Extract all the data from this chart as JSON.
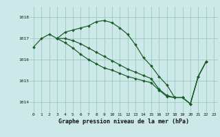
{
  "background_color": "#cce8e8",
  "grid_color": "#99ccbb",
  "line_color": "#1a5e2a",
  "xlabel": "Graphe pression niveau de la mer (hPa)",
  "x_ticks": [
    0,
    1,
    2,
    3,
    4,
    5,
    6,
    7,
    8,
    9,
    10,
    11,
    12,
    13,
    14,
    15,
    16,
    17,
    18,
    19,
    20,
    21,
    22,
    23
  ],
  "ylim": [
    1013.5,
    1018.5
  ],
  "yticks": [
    1014,
    1015,
    1016,
    1017,
    1018
  ],
  "series": [
    [
      1016.6,
      1017.0,
      1017.2,
      1017.0,
      1017.3,
      1017.4,
      1017.5,
      1017.6,
      1017.8,
      1017.85,
      1017.75,
      1017.5,
      1017.2,
      1016.7,
      1016.1,
      1015.7,
      1015.2,
      1014.8,
      1014.2,
      1014.2,
      1013.9,
      1015.2,
      1015.9,
      null
    ],
    [
      null,
      null,
      null,
      1017.0,
      1017.0,
      1016.9,
      1016.75,
      1016.55,
      1016.35,
      1016.15,
      1015.95,
      1015.75,
      1015.55,
      1015.4,
      1015.25,
      1015.1,
      1014.6,
      1014.3,
      1014.2,
      1014.2,
      1013.9,
      1015.2,
      1015.9,
      null
    ],
    [
      null,
      null,
      null,
      1017.0,
      1016.8,
      1016.55,
      1016.25,
      1016.0,
      1015.8,
      1015.6,
      1015.5,
      1015.35,
      1015.2,
      1015.1,
      1015.0,
      1014.9,
      1014.55,
      1014.25,
      1014.2,
      1014.2,
      1013.9,
      1015.2,
      1015.9,
      null
    ]
  ]
}
